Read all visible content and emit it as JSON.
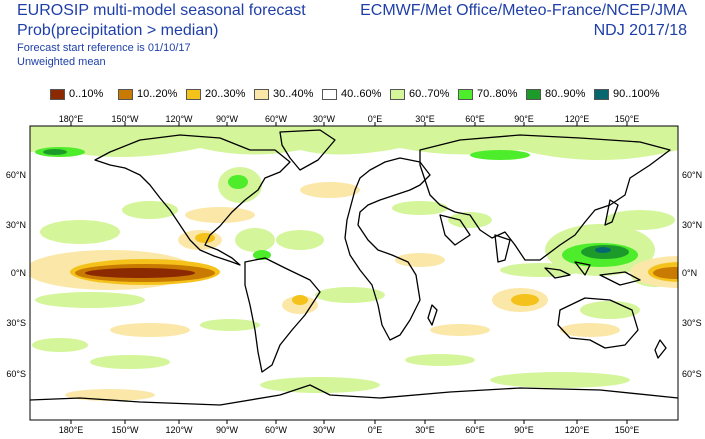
{
  "header": {
    "title_line1": "EUROSIP multi-model seasonal forecast",
    "title_line2": "Prob(precipitation > median)",
    "ref_line": "Forecast start reference is 01/10/17",
    "mean_line": "Unweighted mean",
    "centres": "ECMWF/Met Office/Meteo-France/NCEP/JMA",
    "season": "NDJ 2017/18"
  },
  "legend": [
    {
      "label": "0..10%",
      "color": "#8b2a00"
    },
    {
      "label": "10..20%",
      "color": "#c87b00"
    },
    {
      "label": "20..30%",
      "color": "#f5c21b"
    },
    {
      "label": "30..40%",
      "color": "#fbe8a8"
    },
    {
      "label": "40..60%",
      "color": "#ffffff"
    },
    {
      "label": "60..70%",
      "color": "#d4f59a"
    },
    {
      "label": "70..80%",
      "color": "#4ded2b"
    },
    {
      "label": "80..90%",
      "color": "#1d9b2a"
    },
    {
      "label": "90..100%",
      "color": "#06686e"
    }
  ],
  "lon_labels": [
    "180°E",
    "150°W",
    "120°W",
    "90°W",
    "60°W",
    "30°W",
    "0°E",
    "30°E",
    "60°E",
    "90°E",
    "120°E",
    "150°E"
  ],
  "lat_labels": [
    "60°N",
    "30°N",
    "0°N",
    "30°S",
    "60°S"
  ]
}
